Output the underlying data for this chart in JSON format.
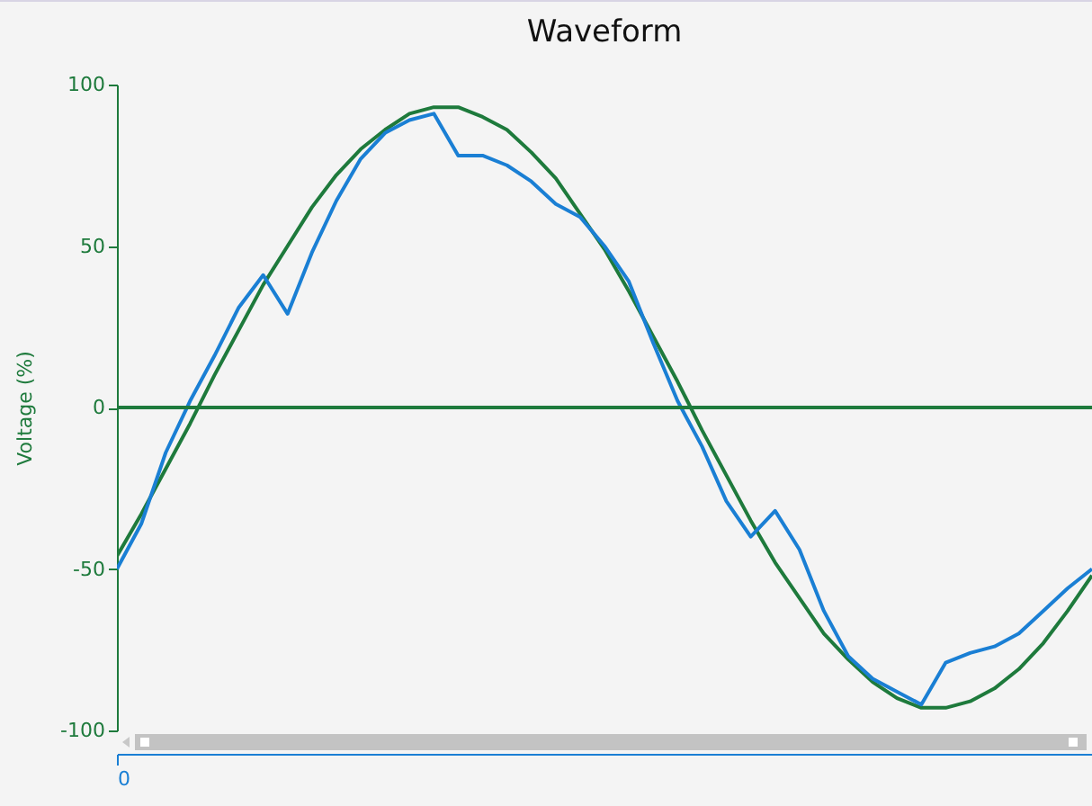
{
  "chart_data": {
    "type": "line",
    "title": "Waveform",
    "ylabel": "Voltage (%)",
    "categories": [
      "0",
      null,
      null,
      null,
      null,
      null,
      null,
      null,
      null,
      null,
      null,
      null,
      null,
      null,
      null,
      null,
      null,
      null,
      null,
      null,
      null,
      null,
      null,
      null,
      null,
      null,
      null,
      null,
      null,
      null,
      null,
      null,
      null,
      null,
      null,
      null,
      null,
      null,
      null,
      null,
      null
    ],
    "ylim": [
      -100,
      100
    ],
    "yticks": [
      100,
      50,
      0,
      -50,
      -100
    ],
    "grid": false,
    "ref_lines": [
      {
        "axis": "y",
        "value": 0,
        "color": "#1e7a3c"
      }
    ],
    "series": [
      {
        "color": "#1e7a3c",
        "values": [
          -46,
          -33,
          -19,
          -5,
          10,
          24,
          38,
          50,
          62,
          72,
          80,
          86,
          91,
          93,
          93,
          90,
          86,
          79,
          71,
          60,
          49,
          36,
          22,
          8,
          -7,
          -21,
          -35,
          -48,
          -59,
          -70,
          -78,
          -85,
          -90,
          -93,
          -93,
          -91,
          -87,
          -81,
          -73,
          -63,
          -52
        ]
      },
      {
        "color": "#1a7fd4",
        "values": [
          -50,
          -36,
          -14,
          2,
          16,
          31,
          41,
          29,
          48,
          64,
          77,
          85,
          89,
          91,
          78,
          78,
          75,
          70,
          63,
          59,
          50,
          39,
          20,
          2,
          -12,
          -29,
          -40,
          -32,
          -44,
          -63,
          -77,
          -84,
          -88,
          -92,
          -79,
          -76,
          -74,
          -70,
          -63,
          -56,
          -50
        ]
      }
    ]
  }
}
